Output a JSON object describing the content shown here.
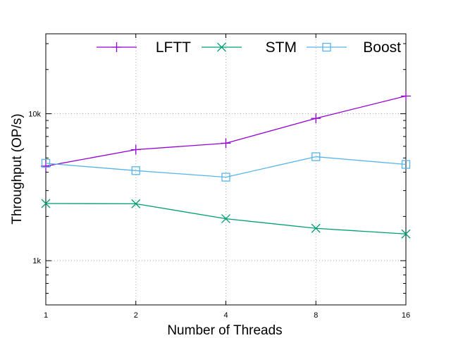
{
  "chart_data": {
    "type": "line",
    "title": "",
    "xlabel": "Number of Threads",
    "ylabel": "Throughput (OP/s)",
    "x": [
      1,
      2,
      4,
      8,
      16
    ],
    "x_tick_labels": [
      "1",
      "2",
      "4",
      "8",
      "16"
    ],
    "x_scale": "log2",
    "y_scale": "log10",
    "ylim": [
      500,
      35000
    ],
    "y_ticks": [
      1000,
      10000
    ],
    "y_tick_labels": [
      "1k",
      "10k"
    ],
    "grid": true,
    "legend_position": "top",
    "series": [
      {
        "name": "LFTT",
        "marker": "plus",
        "color": "#9400d3",
        "values": [
          4400,
          5700,
          6300,
          9300,
          13200
        ]
      },
      {
        "name": "STM",
        "marker": "x",
        "color": "#009e73",
        "values": [
          2450,
          2440,
          1930,
          1660,
          1520
        ]
      },
      {
        "name": "Boost",
        "marker": "square",
        "color": "#56b4e9",
        "values": [
          4600,
          4100,
          3700,
          5100,
          4520
        ]
      }
    ]
  }
}
